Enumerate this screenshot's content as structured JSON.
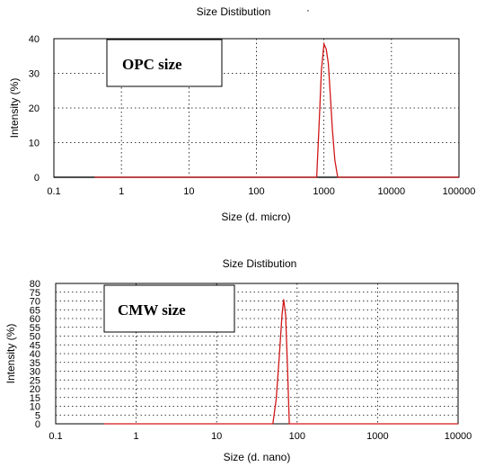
{
  "chart_data": [
    {
      "type": "line",
      "title": "Size Distibution",
      "title_mark": "·",
      "xlabel": "Size (d. micro)",
      "ylabel": "Intensity (%)",
      "xscale": "log",
      "xlim": [
        0.1,
        100000
      ],
      "ylim": [
        0,
        40
      ],
      "xticks": [
        "0.1",
        "1",
        "10",
        "100",
        "1000",
        "10000",
        "100000"
      ],
      "yticks": [
        "0",
        "10",
        "20",
        "30",
        "40"
      ],
      "grid": true,
      "box_label": "OPC size",
      "colors": {
        "series": "#d01818",
        "baseline": "#9a9a9a"
      },
      "series": [
        {
          "x": [
            0.4,
            780,
            850,
            920,
            1000,
            1080,
            1160,
            1240,
            1330,
            1450,
            1600,
            100000
          ],
          "values": [
            0,
            0,
            16,
            31,
            38.5,
            37,
            33,
            24,
            14,
            5,
            0,
            0
          ]
        }
      ]
    },
    {
      "type": "line",
      "title": "Size Distibution",
      "xlabel": "Size (d. nano)",
      "ylabel": "Intensity (%)",
      "xscale": "log",
      "xlim": [
        0.1,
        10000
      ],
      "ylim": [
        0,
        80
      ],
      "xticks": [
        "0.1",
        "1",
        "10",
        "100",
        "1000",
        "10000"
      ],
      "yticks": [
        "0",
        "5",
        "10",
        "15",
        "20",
        "25",
        "30",
        "35",
        "40",
        "45",
        "50",
        "55",
        "60",
        "65",
        "70",
        "75",
        "80"
      ],
      "grid": true,
      "box_label": "CMW size",
      "colors": {
        "series": "#d01818"
      },
      "series": [
        {
          "x": [
            0.4,
            50,
            55,
            60,
            65,
            68,
            72,
            76,
            80,
            10000
          ],
          "values": [
            0,
            0,
            14,
            38,
            62,
            71,
            62,
            32,
            0,
            0
          ]
        }
      ]
    }
  ]
}
